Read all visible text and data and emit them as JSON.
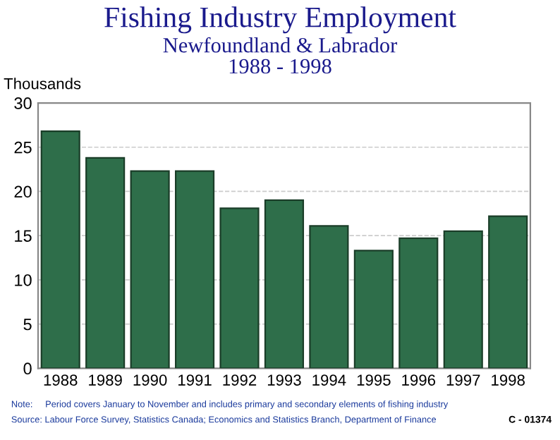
{
  "chart_data": {
    "type": "bar",
    "title": "Fishing Industry Employment",
    "subtitle": "Newfoundland & Labrador\n1988 - 1998",
    "ylabel": "Thousands",
    "categories": [
      "1988",
      "1989",
      "1990",
      "1991",
      "1992",
      "1993",
      "1994",
      "1995",
      "1996",
      "1997",
      "1998"
    ],
    "values": [
      26.8,
      23.8,
      22.3,
      22.3,
      18.1,
      19.0,
      16.1,
      13.3,
      14.7,
      15.5,
      17.2
    ],
    "color": "#2e6e4a",
    "ylim": [
      0,
      30
    ],
    "yticks": [
      0,
      5,
      10,
      15,
      20,
      25,
      30
    ],
    "grid": "y",
    "annotations": [
      "Note:     Period covers January to November and includes primary and secondary elements of fishing industry",
      "Source: Labour Force Survey, Statistics Canada; Economics and Statistics Branch, Department of Finance",
      "C - 01374"
    ]
  }
}
